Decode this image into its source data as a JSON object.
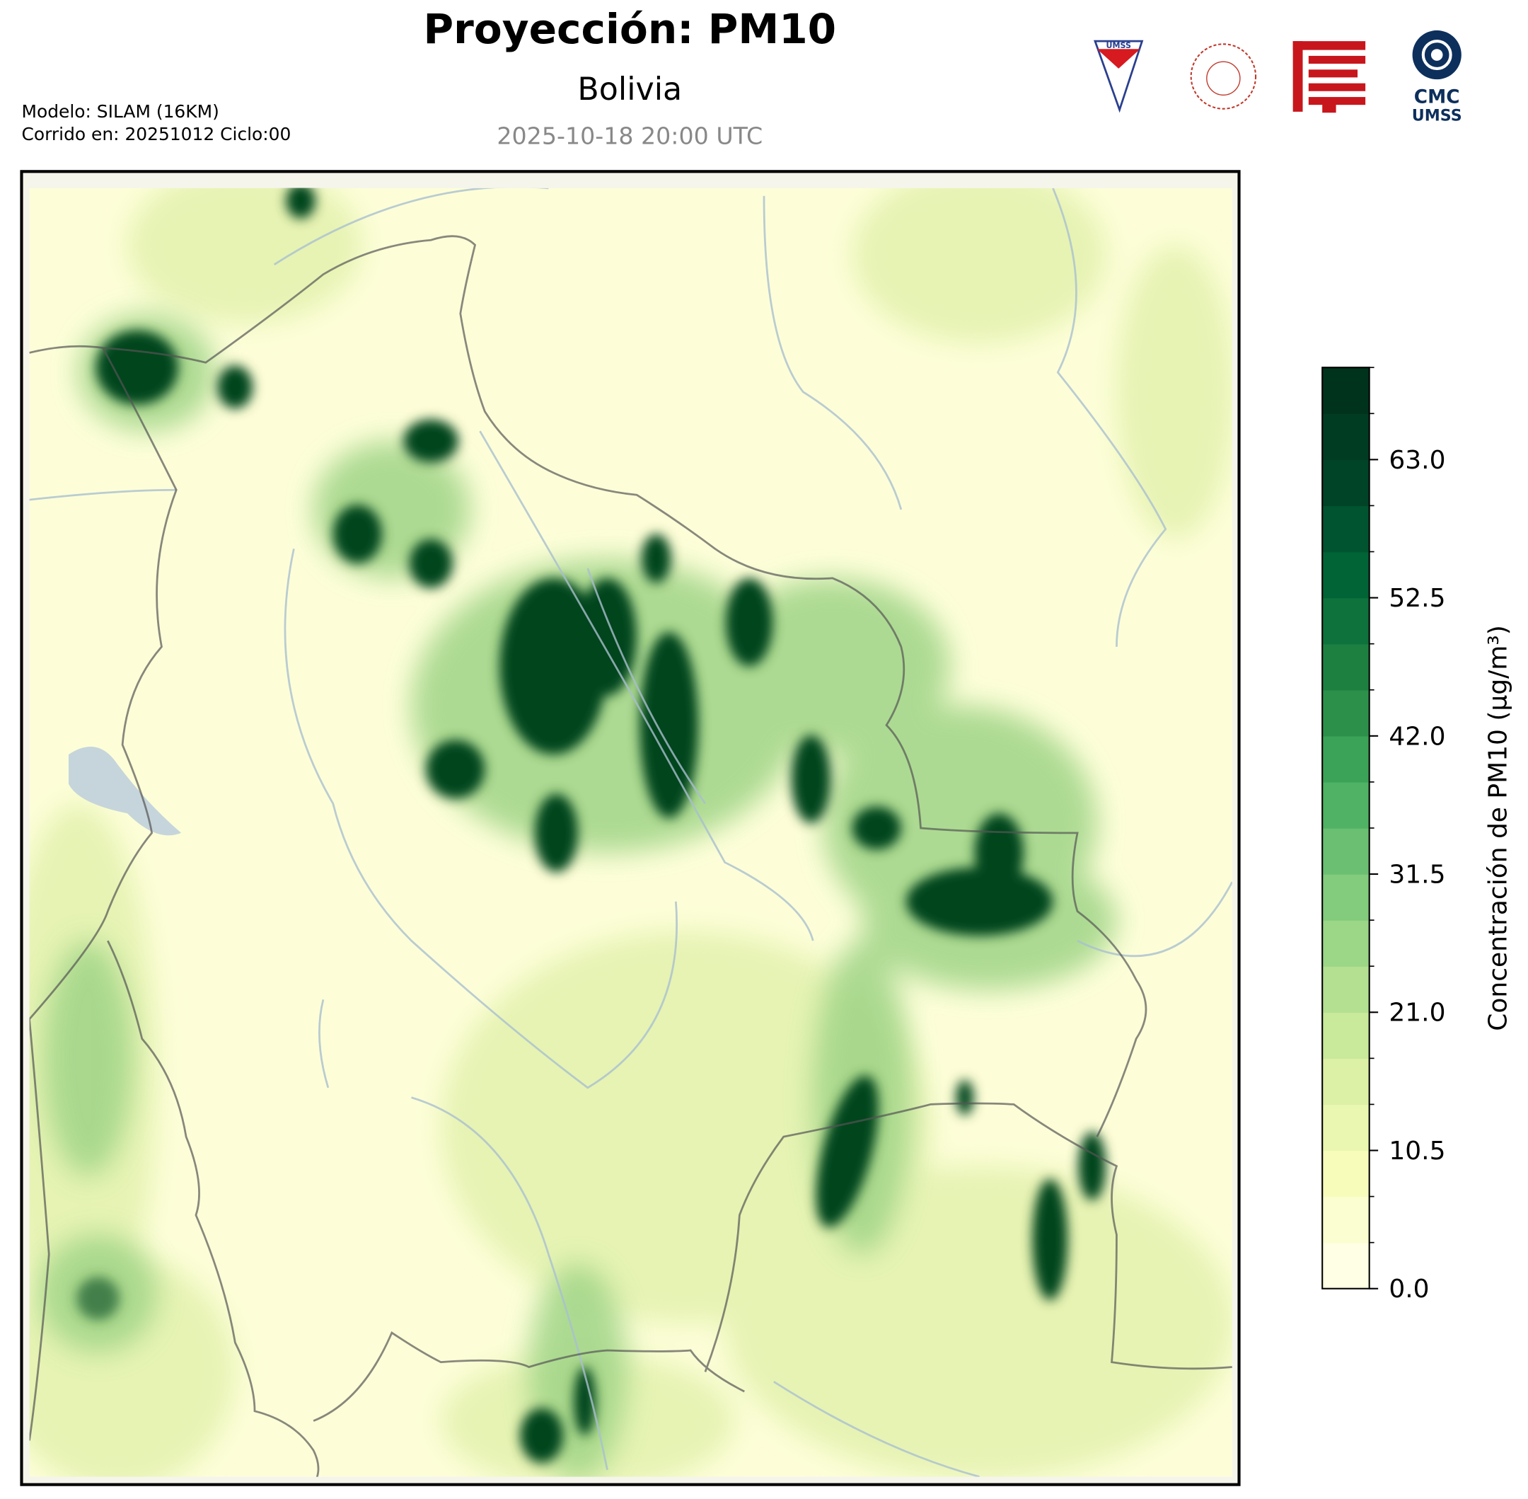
{
  "header": {
    "title": "Proyección: PM10",
    "subtitle": "Bolivia",
    "timestamp": "2025-10-18 20:00 UTC",
    "model": "Modelo: SILAM (16KM)",
    "run": "Corrido en: 20251012 Ciclo:00"
  },
  "logos": {
    "cmc": "CMC",
    "umss": "UMSS"
  },
  "colorbar": {
    "label": "Concentración de PM10 (µg/m³)",
    "lim": [
      0,
      70
    ],
    "ticks": [
      {
        "value": 0,
        "label": "0.0"
      },
      {
        "value": 10.5,
        "label": "10.5"
      },
      {
        "value": 21,
        "label": "21.0"
      },
      {
        "value": 31.5,
        "label": "31.5"
      },
      {
        "value": 42,
        "label": "42.0"
      },
      {
        "value": 52.5,
        "label": "52.5"
      },
      {
        "value": 63,
        "label": "63.0"
      }
    ],
    "levels": [
      0,
      3.5,
      7,
      10.5,
      14,
      17.5,
      21,
      24.5,
      28,
      31.5,
      35,
      38.5,
      42,
      45.5,
      49,
      52.5,
      56,
      59.5,
      63,
      66.5,
      70
    ],
    "colors": [
      "#ffffe5",
      "#f7fcb9",
      "#d9f0a3",
      "#addd8e",
      "#78c679",
      "#41ab5d",
      "#238443",
      "#006837",
      "#004529",
      "#00331c"
    ]
  }
}
